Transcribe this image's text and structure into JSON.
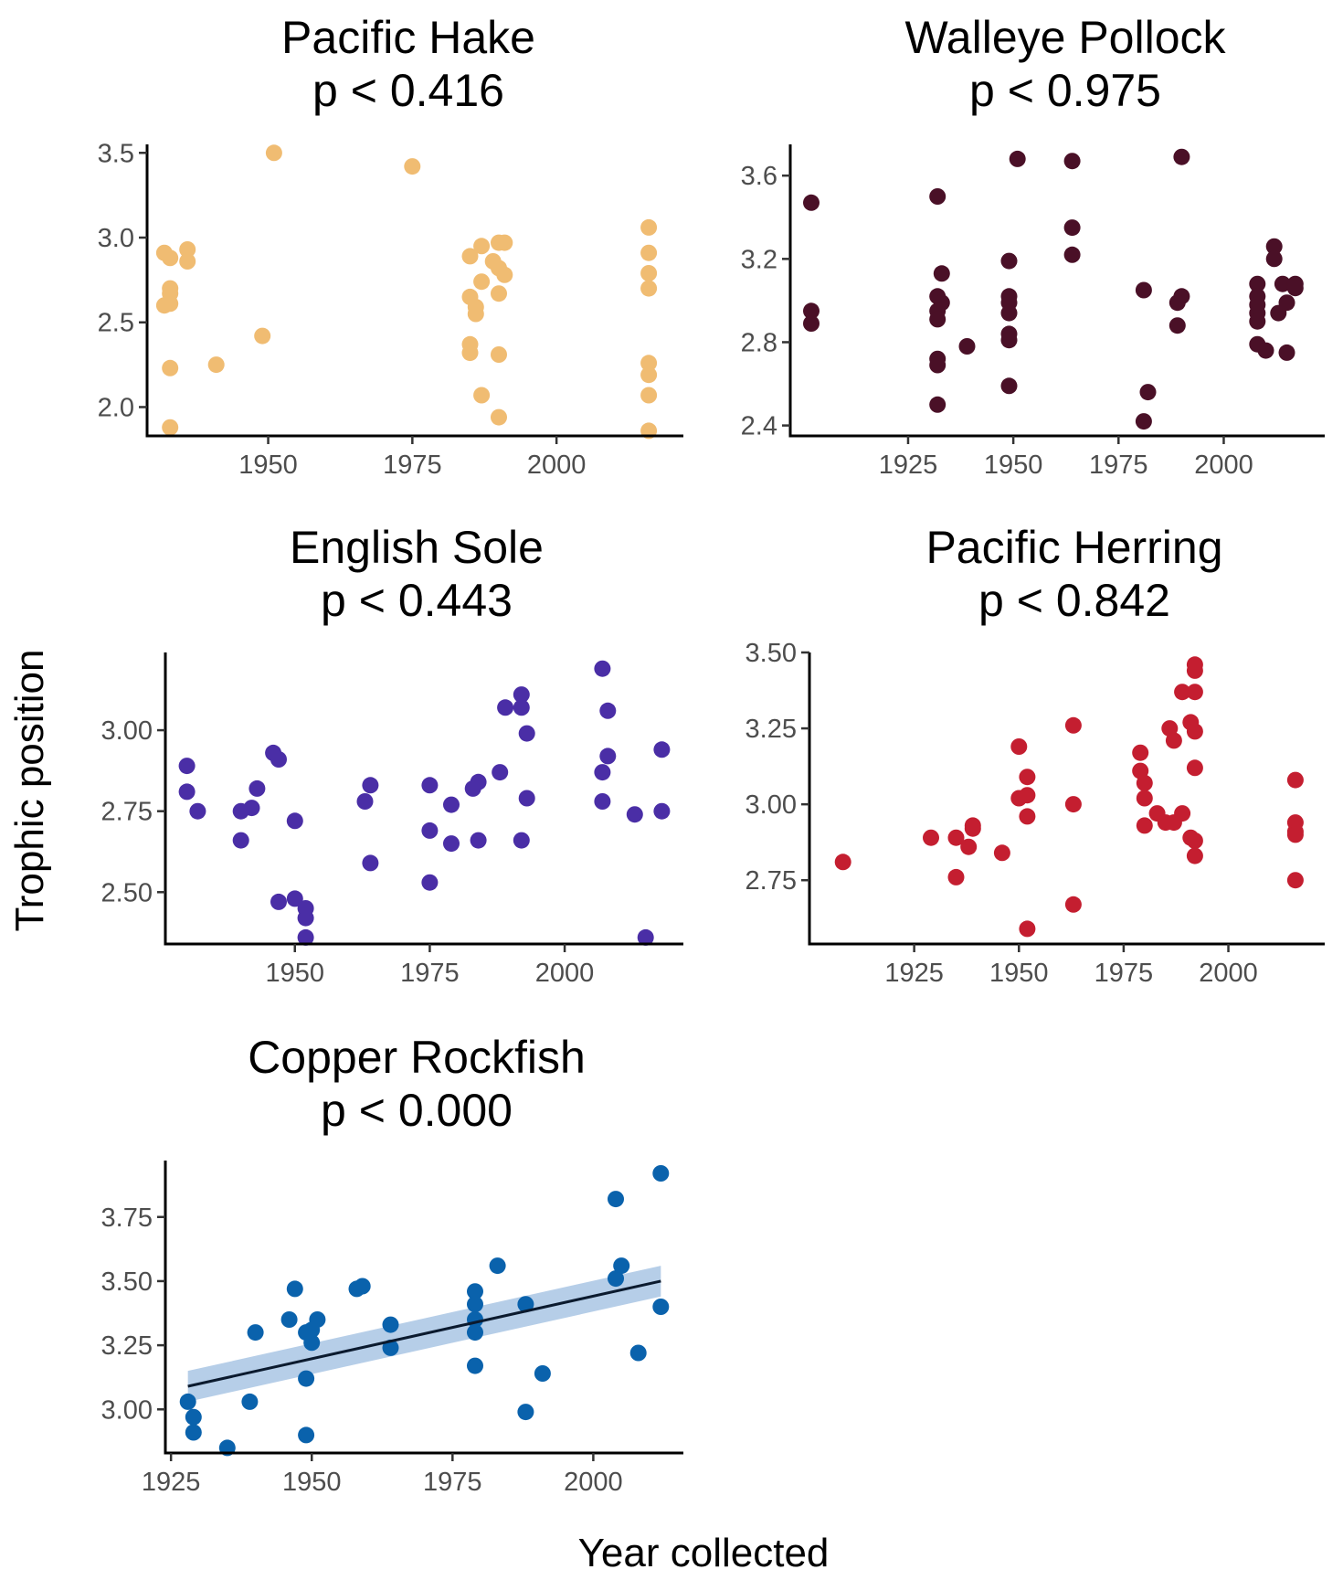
{
  "figure": {
    "y_label": "Trophic position",
    "x_label": "Year collected"
  },
  "chart_data": [
    {
      "type": "scatter",
      "title": "Pacific Hake",
      "subtitle": "p < 0.416",
      "color": "#F0BC72",
      "xlim": [
        1929,
        2022
      ],
      "ylim": [
        1.83,
        3.55
      ],
      "xticks": [
        1950,
        1975,
        2000
      ],
      "yticks": [
        2.0,
        2.5,
        3.0,
        3.5
      ],
      "ytick_labels": [
        "2.0",
        "2.5",
        "3.0",
        "3.5"
      ],
      "trend": null,
      "points": [
        [
          1932,
          2.91
        ],
        [
          1933,
          2.88
        ],
        [
          1936,
          2.93
        ],
        [
          1936,
          2.86
        ],
        [
          1933,
          2.7
        ],
        [
          1933,
          2.67
        ],
        [
          1932,
          2.6
        ],
        [
          1933,
          2.61
        ],
        [
          1933,
          2.23
        ],
        [
          1933,
          1.88
        ],
        [
          1941,
          2.25
        ],
        [
          1949,
          2.42
        ],
        [
          1951,
          3.5
        ],
        [
          1975,
          3.42
        ],
        [
          1985,
          2.89
        ],
        [
          1987,
          2.95
        ],
        [
          1989,
          2.86
        ],
        [
          1990,
          2.97
        ],
        [
          1991,
          2.97
        ],
        [
          1990,
          2.82
        ],
        [
          1991,
          2.78
        ],
        [
          1987,
          2.74
        ],
        [
          1985,
          2.65
        ],
        [
          1986,
          2.59
        ],
        [
          1986,
          2.55
        ],
        [
          1985,
          2.37
        ],
        [
          1985,
          2.32
        ],
        [
          1987,
          2.07
        ],
        [
          1990,
          2.67
        ],
        [
          1990,
          2.31
        ],
        [
          1990,
          1.94
        ],
        [
          2016,
          3.06
        ],
        [
          2016,
          2.91
        ],
        [
          2016,
          2.79
        ],
        [
          2016,
          2.7
        ],
        [
          2016,
          2.26
        ],
        [
          2016,
          2.19
        ],
        [
          2016,
          2.07
        ],
        [
          2016,
          1.86
        ]
      ]
    },
    {
      "type": "scatter",
      "title": "Walleye Pollock",
      "subtitle": "p < 0.975",
      "color": "#4A1027",
      "xlim": [
        1897,
        2024
      ],
      "ylim": [
        2.35,
        3.75
      ],
      "xticks": [
        1925,
        1950,
        1975,
        2000
      ],
      "yticks": [
        2.4,
        2.8,
        3.2,
        3.6
      ],
      "ytick_labels": [
        "2.4",
        "2.8",
        "3.2",
        "3.6"
      ],
      "trend": null,
      "points": [
        [
          1902,
          3.47
        ],
        [
          1902,
          2.95
        ],
        [
          1902,
          2.89
        ],
        [
          1932,
          3.5
        ],
        [
          1933,
          3.13
        ],
        [
          1932,
          3.02
        ],
        [
          1933,
          2.99
        ],
        [
          1932,
          2.95
        ],
        [
          1932,
          2.91
        ],
        [
          1932,
          2.72
        ],
        [
          1932,
          2.69
        ],
        [
          1932,
          2.5
        ],
        [
          1939,
          2.78
        ],
        [
          1949,
          3.19
        ],
        [
          1949,
          3.02
        ],
        [
          1949,
          2.99
        ],
        [
          1949,
          2.94
        ],
        [
          1949,
          2.84
        ],
        [
          1949,
          2.81
        ],
        [
          1949,
          2.59
        ],
        [
          1951,
          3.68
        ],
        [
          1964,
          3.67
        ],
        [
          1964,
          3.35
        ],
        [
          1964,
          3.22
        ],
        [
          1981,
          3.05
        ],
        [
          1982,
          2.56
        ],
        [
          1981,
          2.42
        ],
        [
          1990,
          3.69
        ],
        [
          1990,
          3.02
        ],
        [
          1989,
          2.99
        ],
        [
          1989,
          2.88
        ],
        [
          2008,
          3.08
        ],
        [
          2008,
          3.02
        ],
        [
          2008,
          2.98
        ],
        [
          2008,
          2.94
        ],
        [
          2008,
          2.9
        ],
        [
          2008,
          2.79
        ],
        [
          2010,
          2.76
        ],
        [
          2012,
          3.26
        ],
        [
          2012,
          3.2
        ],
        [
          2014,
          3.08
        ],
        [
          2017,
          3.08
        ],
        [
          2017,
          3.06
        ],
        [
          2013,
          2.94
        ],
        [
          2015,
          2.99
        ],
        [
          2015,
          2.75
        ]
      ]
    },
    {
      "type": "scatter",
      "title": "English Sole",
      "subtitle": "p < 0.443",
      "color": "#4A2EA6",
      "xlim": [
        1926,
        2022
      ],
      "ylim": [
        2.34,
        3.24
      ],
      "xticks": [
        1950,
        1975,
        2000
      ],
      "yticks": [
        2.5,
        2.75,
        3.0
      ],
      "ytick_labels": [
        "2.50",
        "2.75",
        "3.00"
      ],
      "trend": null,
      "points": [
        [
          1930,
          2.89
        ],
        [
          1930,
          2.81
        ],
        [
          1932,
          2.75
        ],
        [
          1940,
          2.75
        ],
        [
          1942,
          2.76
        ],
        [
          1940,
          2.66
        ],
        [
          1943,
          2.82
        ],
        [
          1946,
          2.93
        ],
        [
          1947,
          2.91
        ],
        [
          1947,
          2.47
        ],
        [
          1950,
          2.72
        ],
        [
          1950,
          2.48
        ],
        [
          1952,
          2.45
        ],
        [
          1952,
          2.42
        ],
        [
          1952,
          2.36
        ],
        [
          1963,
          2.78
        ],
        [
          1964,
          2.83
        ],
        [
          1964,
          2.59
        ],
        [
          1975,
          2.83
        ],
        [
          1975,
          2.69
        ],
        [
          1975,
          2.53
        ],
        [
          1979,
          2.77
        ],
        [
          1979,
          2.65
        ],
        [
          1983,
          2.82
        ],
        [
          1984,
          2.84
        ],
        [
          1984,
          2.66
        ],
        [
          1988,
          2.87
        ],
        [
          1989,
          3.07
        ],
        [
          1992,
          3.11
        ],
        [
          1992,
          3.07
        ],
        [
          1993,
          2.99
        ],
        [
          1993,
          2.79
        ],
        [
          1992,
          2.66
        ],
        [
          2007,
          3.19
        ],
        [
          2008,
          3.06
        ],
        [
          2008,
          2.92
        ],
        [
          2007,
          2.87
        ],
        [
          2007,
          2.78
        ],
        [
          2013,
          2.74
        ],
        [
          2015,
          2.36
        ],
        [
          2018,
          2.94
        ],
        [
          2018,
          2.75
        ]
      ]
    },
    {
      "type": "scatter",
      "title": "Pacific Herring",
      "subtitle": "p < 0.842",
      "color": "#C41E30",
      "xlim": [
        1900,
        2023
      ],
      "ylim": [
        2.54,
        3.5
      ],
      "xticks": [
        1925,
        1950,
        1975,
        2000
      ],
      "yticks": [
        2.75,
        3.0,
        3.25,
        3.5
      ],
      "ytick_labels": [
        "2.75",
        "3.00",
        "3.25",
        "3.50"
      ],
      "trend": null,
      "points": [
        [
          1908,
          2.81
        ],
        [
          1929,
          2.89
        ],
        [
          1935,
          2.89
        ],
        [
          1935,
          2.76
        ],
        [
          1938,
          2.86
        ],
        [
          1939,
          2.93
        ],
        [
          1939,
          2.92
        ],
        [
          1946,
          2.84
        ],
        [
          1950,
          3.19
        ],
        [
          1950,
          3.02
        ],
        [
          1952,
          3.09
        ],
        [
          1952,
          3.03
        ],
        [
          1952,
          2.96
        ],
        [
          1952,
          2.59
        ],
        [
          1963,
          3.26
        ],
        [
          1963,
          3.0
        ],
        [
          1963,
          2.67
        ],
        [
          1979,
          3.17
        ],
        [
          1979,
          3.11
        ],
        [
          1980,
          3.07
        ],
        [
          1980,
          3.02
        ],
        [
          1980,
          2.93
        ],
        [
          1983,
          2.97
        ],
        [
          1985,
          2.94
        ],
        [
          1986,
          3.25
        ],
        [
          1987,
          3.21
        ],
        [
          1987,
          2.94
        ],
        [
          1989,
          3.37
        ],
        [
          1989,
          2.97
        ],
        [
          1991,
          3.27
        ],
        [
          1991,
          2.89
        ],
        [
          1992,
          3.46
        ],
        [
          1992,
          3.44
        ],
        [
          1992,
          3.37
        ],
        [
          1992,
          3.24
        ],
        [
          1992,
          3.12
        ],
        [
          1992,
          2.88
        ],
        [
          1992,
          2.83
        ],
        [
          2016,
          3.08
        ],
        [
          2016,
          2.94
        ],
        [
          2016,
          2.91
        ],
        [
          2016,
          2.9
        ],
        [
          2016,
          2.75
        ]
      ]
    },
    {
      "type": "scatter",
      "title": "Copper Rockfish",
      "subtitle": "p < 0.000",
      "color": "#0A62AC",
      "xlim": [
        1924,
        2016
      ],
      "ylim": [
        2.83,
        3.97
      ],
      "xticks": [
        1925,
        1950,
        1975,
        2000
      ],
      "yticks": [
        3.0,
        3.25,
        3.5,
        3.75
      ],
      "ytick_labels": [
        "3.00",
        "3.25",
        "3.50",
        "3.75"
      ],
      "trend": {
        "x": [
          1928,
          2012
        ],
        "y": [
          3.09,
          3.5
        ],
        "ci_low": [
          3.03,
          3.44
        ],
        "ci_high": [
          3.15,
          3.56
        ],
        "line_color": "#0B1A2E",
        "band_color": "#9DBEE0"
      },
      "points": [
        [
          1928,
          3.03
        ],
        [
          1929,
          2.97
        ],
        [
          1929,
          2.91
        ],
        [
          1935,
          2.85
        ],
        [
          1939,
          3.03
        ],
        [
          1940,
          3.3
        ],
        [
          1946,
          3.35
        ],
        [
          1947,
          3.47
        ],
        [
          1949,
          3.3
        ],
        [
          1949,
          3.12
        ],
        [
          1949,
          2.9
        ],
        [
          1950,
          3.26
        ],
        [
          1950,
          3.31
        ],
        [
          1951,
          3.35
        ],
        [
          1958,
          3.47
        ],
        [
          1959,
          3.48
        ],
        [
          1964,
          3.33
        ],
        [
          1964,
          3.24
        ],
        [
          1979,
          3.46
        ],
        [
          1979,
          3.41
        ],
        [
          1979,
          3.35
        ],
        [
          1979,
          3.3
        ],
        [
          1979,
          3.17
        ],
        [
          1983,
          3.56
        ],
        [
          1988,
          3.41
        ],
        [
          1988,
          2.99
        ],
        [
          1991,
          3.14
        ],
        [
          2004,
          3.82
        ],
        [
          2004,
          3.51
        ],
        [
          2005,
          3.56
        ],
        [
          2008,
          3.22
        ],
        [
          2012,
          3.92
        ],
        [
          2012,
          3.4
        ]
      ]
    }
  ]
}
